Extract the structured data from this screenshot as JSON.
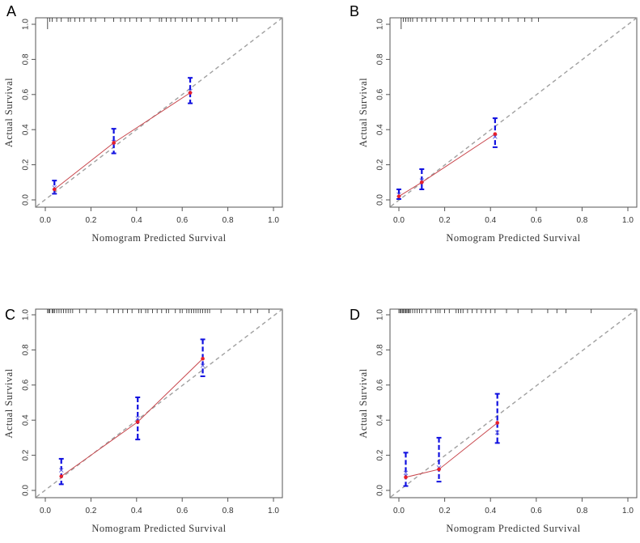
{
  "chart_data": [
    {
      "type": "scatter",
      "panel": "A",
      "xlabel": "Nomogram Predicted Survival",
      "ylabel": "Actual Survival",
      "xlim": [
        0,
        1
      ],
      "ylim": [
        0,
        1
      ],
      "x_ticks": [
        "0.0",
        "0.2",
        "0.4",
        "0.6",
        "0.8",
        "1.0"
      ],
      "y_ticks": [
        "0.0",
        "0.2",
        "0.4",
        "0.6",
        "0.8",
        "1.0"
      ],
      "reference_line": "diagonal dashed gray",
      "predicted": [
        0.04,
        0.3,
        0.635
      ],
      "observed": [
        0.06,
        0.325,
        0.61
      ],
      "bias_corrected": [
        0.07,
        0.33,
        0.62
      ],
      "ci_lower": [
        0.035,
        0.265,
        0.55
      ],
      "ci_upper": [
        0.11,
        0.405,
        0.695
      ],
      "rug": [
        0.01,
        0.02,
        0.03,
        0.05,
        0.07,
        0.1,
        0.11,
        0.13,
        0.15,
        0.17,
        0.2,
        0.22,
        0.26,
        0.3,
        0.33,
        0.35,
        0.37,
        0.4,
        0.42,
        0.46,
        0.5,
        0.51,
        0.53,
        0.55,
        0.57,
        0.6,
        0.62,
        0.64,
        0.67,
        0.7,
        0.73,
        0.76,
        0.79,
        0.82,
        0.84
      ]
    },
    {
      "type": "scatter",
      "panel": "B",
      "xlabel": "Nomogram Predicted Survival",
      "ylabel": "Actual Survival",
      "xlim": [
        0,
        1
      ],
      "ylim": [
        0,
        1
      ],
      "x_ticks": [
        "0.0",
        "0.2",
        "0.4",
        "0.6",
        "0.8",
        "1.0"
      ],
      "y_ticks": [
        "0.0",
        "0.2",
        "0.4",
        "0.6",
        "0.8",
        "1.0"
      ],
      "reference_line": "diagonal dashed gray",
      "predicted": [
        0.0,
        0.1,
        0.42
      ],
      "observed": [
        0.02,
        0.1,
        0.375
      ],
      "bias_corrected": [
        0.03,
        0.11,
        0.36
      ],
      "ci_lower": [
        0.005,
        0.06,
        0.3
      ],
      "ci_upper": [
        0.06,
        0.175,
        0.465
      ],
      "rug": [
        0.01,
        0.02,
        0.03,
        0.04,
        0.05,
        0.06,
        0.08,
        0.1,
        0.12,
        0.14,
        0.16,
        0.19,
        0.21,
        0.24,
        0.27,
        0.3,
        0.33,
        0.36,
        0.39,
        0.42,
        0.45,
        0.48,
        0.52,
        0.55,
        0.58,
        0.61
      ]
    },
    {
      "type": "scatter",
      "panel": "C",
      "xlabel": "Nomogram Predicted Survival",
      "ylabel": "Actual Survival",
      "xlim": [
        0,
        1
      ],
      "ylim": [
        0,
        1
      ],
      "x_ticks": [
        "0.0",
        "0.2",
        "0.4",
        "0.6",
        "0.8",
        "1.0"
      ],
      "y_ticks": [
        "0.0",
        "0.2",
        "0.4",
        "0.6",
        "0.8",
        "1.0"
      ],
      "reference_line": "diagonal dashed gray",
      "predicted": [
        0.07,
        0.405,
        0.69
      ],
      "observed": [
        0.08,
        0.39,
        0.75
      ],
      "bias_corrected": [
        0.115,
        0.41,
        0.71
      ],
      "ci_lower": [
        0.035,
        0.29,
        0.65
      ],
      "ci_upper": [
        0.18,
        0.53,
        0.86
      ],
      "rug": [
        0.01,
        0.015,
        0.02,
        0.03,
        0.035,
        0.04,
        0.05,
        0.06,
        0.07,
        0.08,
        0.09,
        0.1,
        0.11,
        0.12,
        0.15,
        0.18,
        0.22,
        0.27,
        0.3,
        0.32,
        0.34,
        0.36,
        0.38,
        0.41,
        0.42,
        0.44,
        0.45,
        0.47,
        0.49,
        0.51,
        0.53,
        0.54,
        0.57,
        0.59,
        0.6,
        0.62,
        0.63,
        0.64,
        0.65,
        0.66,
        0.67,
        0.68,
        0.69,
        0.7,
        0.71,
        0.72,
        0.77,
        0.84,
        0.87,
        0.9,
        0.93,
        0.98
      ]
    },
    {
      "type": "scatter",
      "panel": "D",
      "xlabel": "Nomogram Predicted Survival",
      "ylabel": "Actual Survival",
      "xlim": [
        0,
        1
      ],
      "ylim": [
        0,
        1
      ],
      "x_ticks": [
        "0.0",
        "0.2",
        "0.4",
        "0.6",
        "0.8",
        "1.0"
      ],
      "y_ticks": [
        "0.0",
        "0.2",
        "0.4",
        "0.6",
        "0.8",
        "1.0"
      ],
      "reference_line": "diagonal dashed gray",
      "predicted": [
        0.03,
        0.175,
        0.43
      ],
      "observed": [
        0.075,
        0.12,
        0.385
      ],
      "bias_corrected": [
        0.1,
        0.13,
        0.33
      ],
      "ci_lower": [
        0.025,
        0.05,
        0.27
      ],
      "ci_upper": [
        0.215,
        0.3,
        0.55
      ],
      "rug": [
        0.0,
        0.005,
        0.01,
        0.015,
        0.02,
        0.025,
        0.03,
        0.035,
        0.04,
        0.045,
        0.05,
        0.06,
        0.07,
        0.08,
        0.09,
        0.1,
        0.12,
        0.14,
        0.16,
        0.17,
        0.18,
        0.2,
        0.22,
        0.25,
        0.26,
        0.27,
        0.28,
        0.3,
        0.32,
        0.34,
        0.36,
        0.38,
        0.4,
        0.42,
        0.47,
        0.52,
        0.58,
        0.65,
        0.69,
        0.73,
        0.84
      ]
    }
  ],
  "colors": {
    "observed": "#e8202a",
    "line": "#c8464c",
    "ci": "#1010e0",
    "reference": "#a0a0a0",
    "axis": "#555555"
  }
}
